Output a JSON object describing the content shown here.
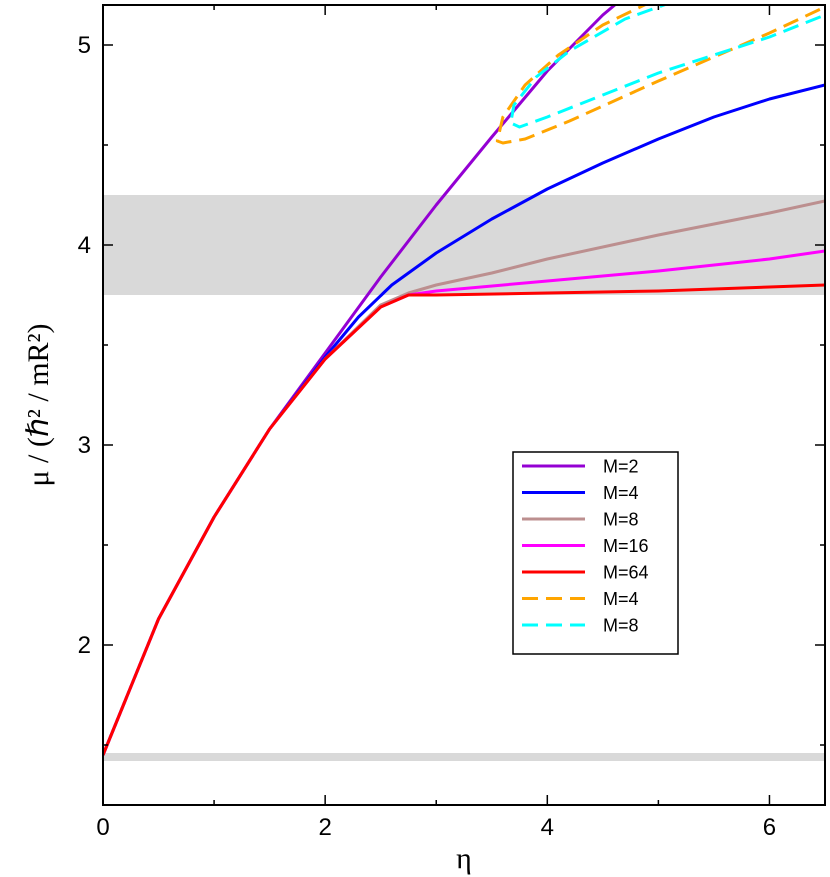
{
  "chart_data": {
    "type": "line",
    "title": "",
    "xlabel": "η",
    "ylabel": "μ / (ℏ² / mR²)",
    "xlim": [
      0,
      6.5
    ],
    "ylim": [
      1.2,
      5.2
    ],
    "x_ticks": [
      0,
      2,
      4,
      6
    ],
    "y_ticks": [
      2,
      3,
      4,
      5
    ],
    "x_minor_step": 1,
    "y_minor_step": 0.5,
    "grid": false,
    "legend_position": "center-right",
    "shaded_bands": [
      {
        "name": "upper-band",
        "y_range": [
          3.75,
          4.25
        ],
        "color": "#d9d9d9"
      },
      {
        "name": "lower-band",
        "y_range": [
          1.42,
          1.46
        ],
        "color": "#d9d9d9"
      }
    ],
    "series": [
      {
        "name": "M=2",
        "color": "#9400d3",
        "dash": "solid",
        "x": [
          0,
          0.5,
          1.0,
          1.5,
          2.0,
          2.5,
          3.0,
          3.5,
          4.0,
          4.5,
          4.65
        ],
        "y": [
          1.45,
          2.13,
          2.64,
          3.08,
          3.46,
          3.84,
          4.2,
          4.54,
          4.87,
          5.15,
          5.22
        ]
      },
      {
        "name": "M=4",
        "color": "#0000ff",
        "dash": "solid",
        "x": [
          0,
          0.5,
          1.0,
          1.5,
          2.0,
          2.3,
          2.6,
          3.0,
          3.5,
          4.0,
          4.5,
          5.0,
          5.5,
          6.0,
          6.5
        ],
        "y": [
          1.45,
          2.13,
          2.64,
          3.08,
          3.44,
          3.64,
          3.8,
          3.96,
          4.13,
          4.28,
          4.41,
          4.53,
          4.64,
          4.73,
          4.8
        ]
      },
      {
        "name": "M=8",
        "color": "#bc8f8f",
        "dash": "solid",
        "x": [
          0,
          0.5,
          1.0,
          1.5,
          2.0,
          2.5,
          2.75,
          3.0,
          3.5,
          4.0,
          5.0,
          6.0,
          6.5
        ],
        "y": [
          1.45,
          2.13,
          2.64,
          3.08,
          3.43,
          3.7,
          3.76,
          3.8,
          3.86,
          3.93,
          4.05,
          4.16,
          4.22
        ]
      },
      {
        "name": "M=16",
        "color": "#ff00ff",
        "dash": "solid",
        "x": [
          0,
          0.5,
          1.0,
          1.5,
          2.0,
          2.5,
          2.75,
          3.0,
          4.0,
          5.0,
          6.0,
          6.5
        ],
        "y": [
          1.45,
          2.13,
          2.64,
          3.08,
          3.43,
          3.69,
          3.75,
          3.77,
          3.82,
          3.87,
          3.93,
          3.97
        ]
      },
      {
        "name": "M=64",
        "color": "#ff0000",
        "dash": "solid",
        "x": [
          0,
          0.5,
          1.0,
          1.5,
          2.0,
          2.5,
          2.75,
          3.0,
          4.0,
          5.0,
          6.0,
          6.5
        ],
        "y": [
          1.45,
          2.13,
          2.64,
          3.08,
          3.43,
          3.69,
          3.75,
          3.75,
          3.76,
          3.77,
          3.79,
          3.8
        ]
      },
      {
        "name": "M=4",
        "color": "#ffa500",
        "dash": "dashed",
        "x": [
          4.95,
          4.5,
          4.1,
          3.8,
          3.6,
          3.55,
          3.6,
          3.8,
          4.2,
          5.0,
          6.0,
          6.5
        ],
        "y": [
          5.22,
          5.1,
          4.95,
          4.8,
          4.64,
          4.52,
          4.51,
          4.53,
          4.62,
          4.82,
          5.06,
          5.19
        ]
      },
      {
        "name": "M=8",
        "color": "#00ffff",
        "dash": "dashed",
        "x": [
          5.15,
          4.7,
          4.2,
          3.9,
          3.7,
          3.67,
          3.75,
          4.0,
          4.5,
          5.0,
          6.0,
          6.5
        ],
        "y": [
          5.22,
          5.13,
          4.97,
          4.84,
          4.7,
          4.61,
          4.59,
          4.64,
          4.75,
          4.86,
          5.04,
          5.15
        ]
      }
    ]
  }
}
